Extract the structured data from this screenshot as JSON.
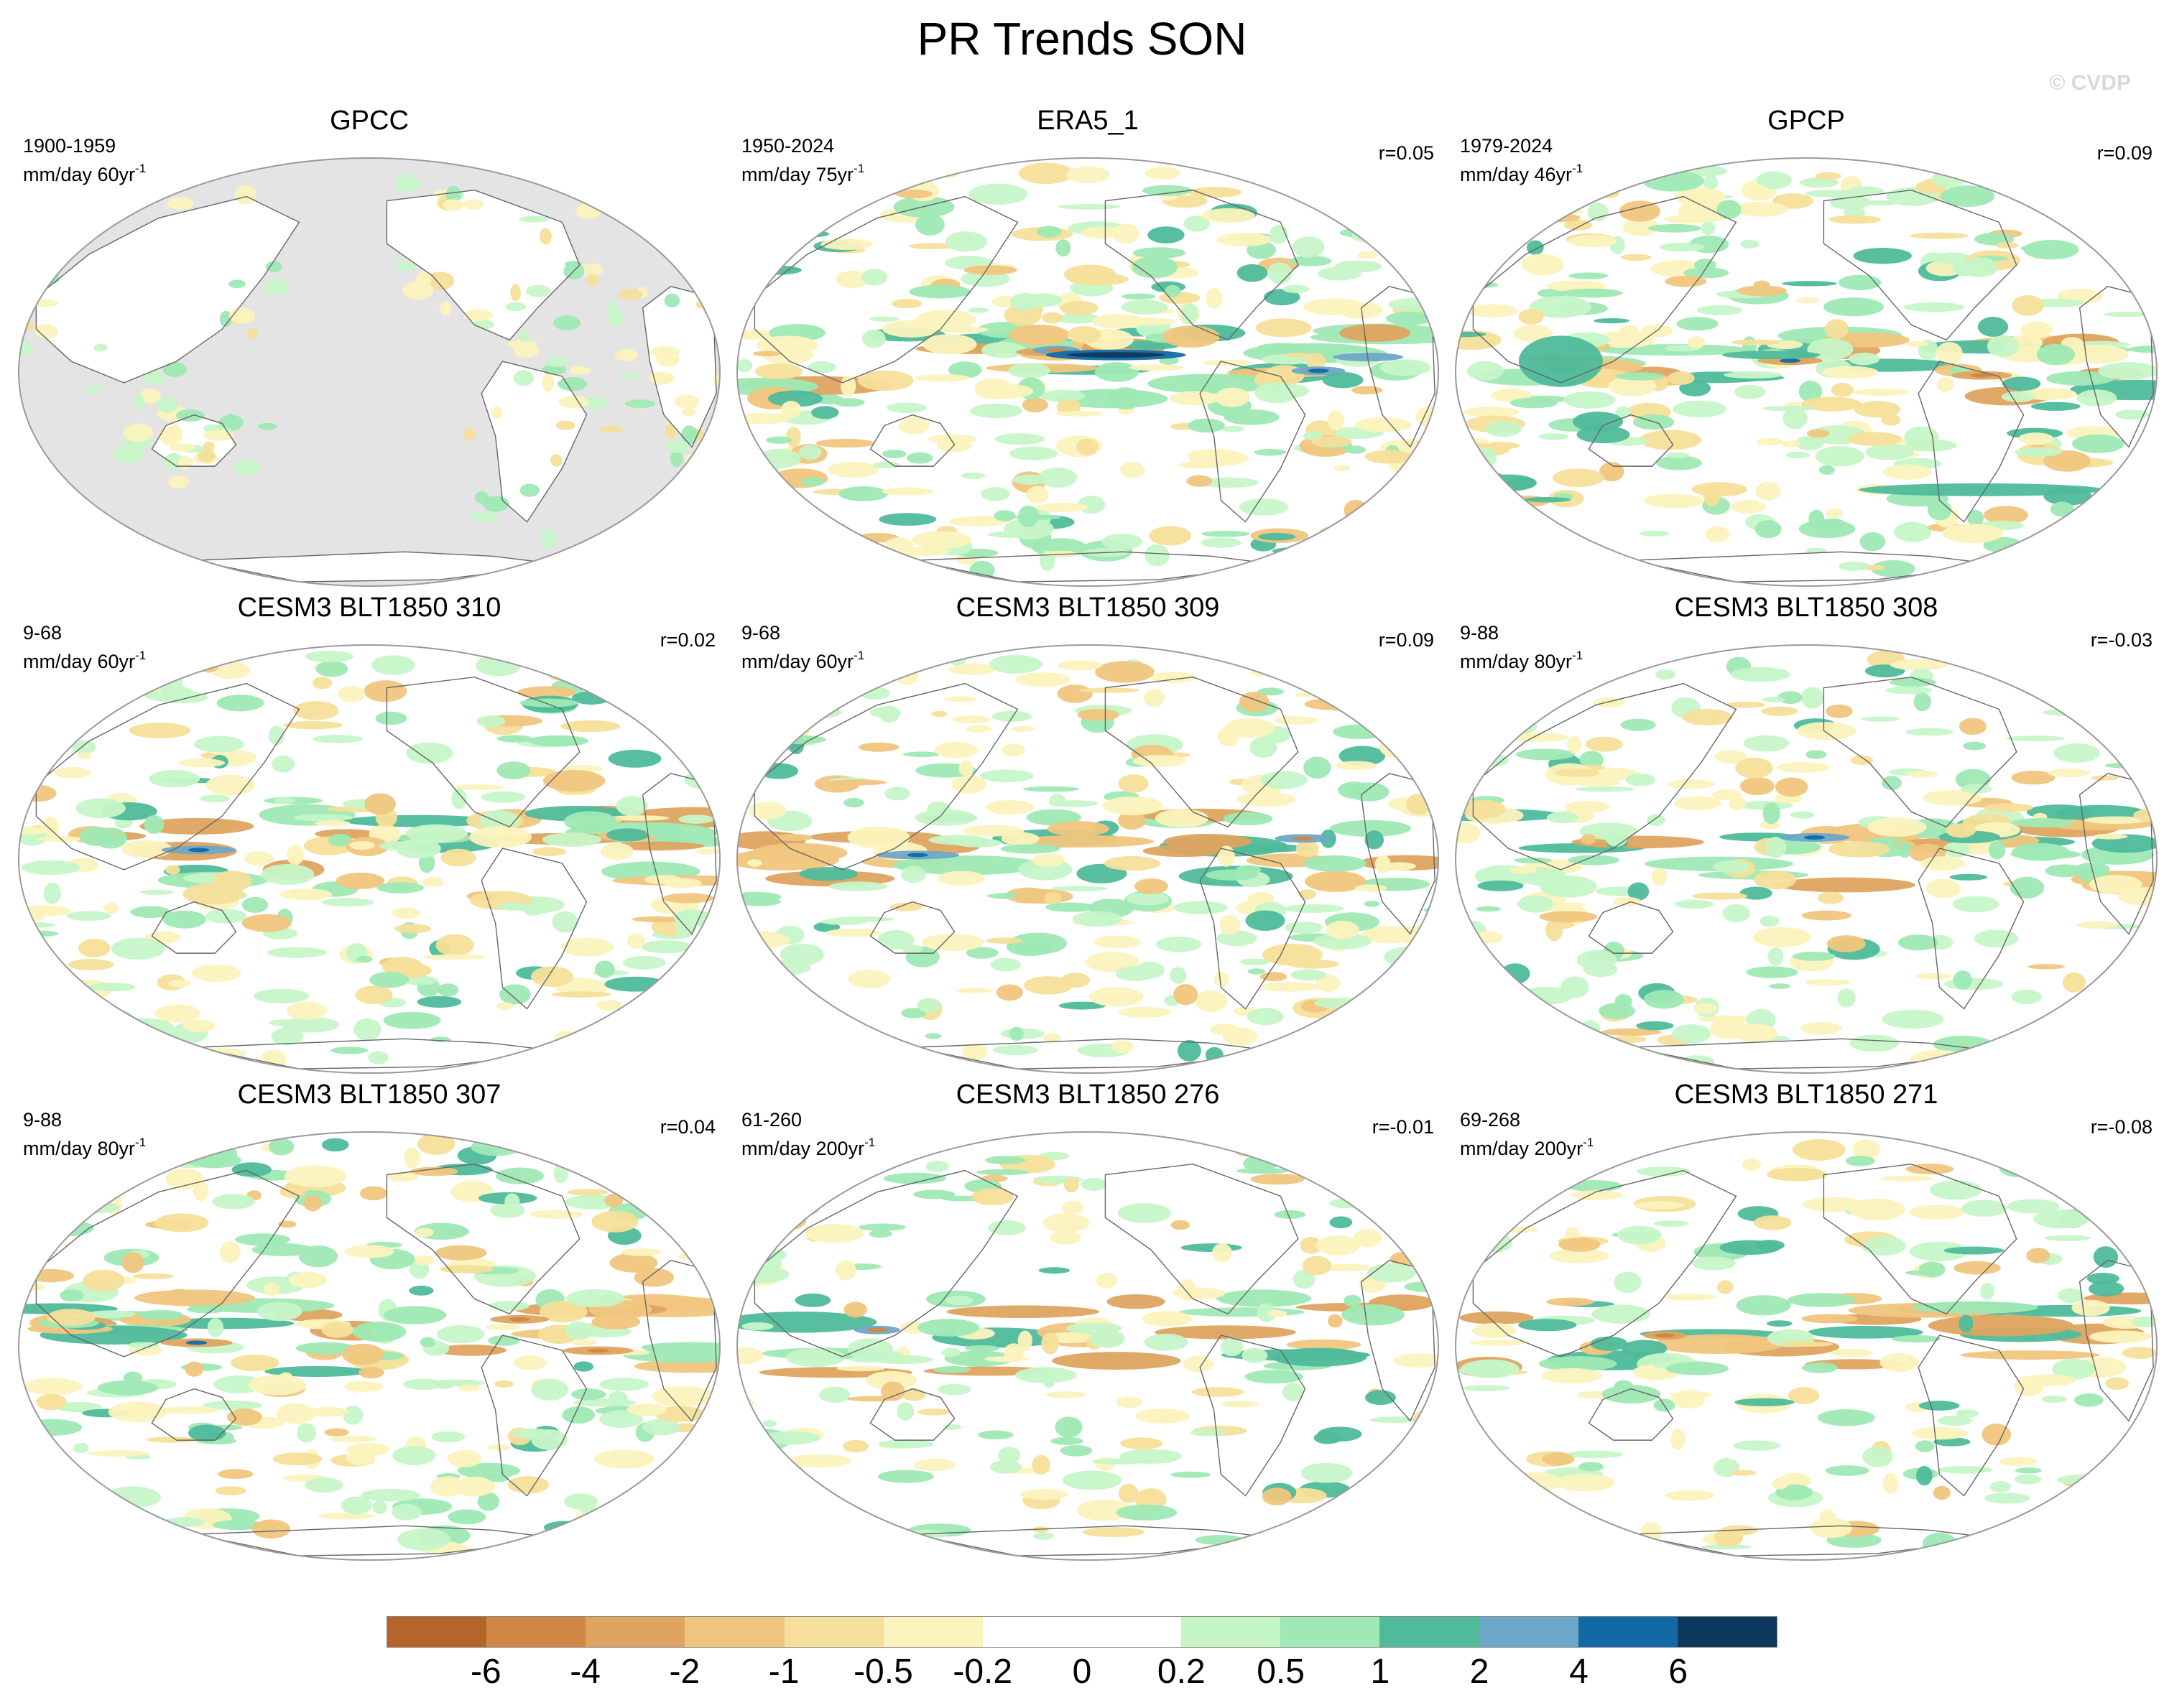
{
  "figure": {
    "title": "PR Trends SON",
    "watermark": "© CVDP"
  },
  "panels": [
    {
      "title": "GPCC",
      "period": "1900-1959",
      "units": "mm/day 60yr",
      "exponent": "-1",
      "corr": "",
      "variant": "obs_land"
    },
    {
      "title": "ERA5_1",
      "period": "1950-2024",
      "units": "mm/day 75yr",
      "exponent": "-1",
      "corr": "r=0.05",
      "variant": "reanalysis"
    },
    {
      "title": "GPCP",
      "period": "1979-2024",
      "units": "mm/day 46yr",
      "exponent": "-1",
      "corr": "r=0.09",
      "variant": "satellite"
    },
    {
      "title": "CESM3 BLT1850 310",
      "period": "9-68",
      "units": "mm/day 60yr",
      "exponent": "-1",
      "corr": "r=0.02",
      "variant": "model"
    },
    {
      "title": "CESM3 BLT1850 309",
      "period": "9-68",
      "units": "mm/day 60yr",
      "exponent": "-1",
      "corr": "r=0.09",
      "variant": "model"
    },
    {
      "title": "CESM3 BLT1850 308",
      "period": "9-88",
      "units": "mm/day 80yr",
      "exponent": "-1",
      "corr": "r=-0.03",
      "variant": "model"
    },
    {
      "title": "CESM3 BLT1850 307",
      "period": "9-88",
      "units": "mm/day 80yr",
      "exponent": "-1",
      "corr": "r=0.04",
      "variant": "model"
    },
    {
      "title": "CESM3 BLT1850 276",
      "period": "61-260",
      "units": "mm/day 200yr",
      "exponent": "-1",
      "corr": "r=-0.01",
      "variant": "model_weak"
    },
    {
      "title": "CESM3 BLT1850 271",
      "period": "69-268",
      "units": "mm/day 200yr",
      "exponent": "-1",
      "corr": "r=-0.08",
      "variant": "model_weak"
    }
  ],
  "colorbar": {
    "colors": [
      "#b5652a",
      "#cf8743",
      "#dfa460",
      "#f0c67e",
      "#f5df9a",
      "#fbf3bd",
      "#ffffff",
      "#ffffff",
      "#c6f5c8",
      "#9ee9b4",
      "#4fbb9b",
      "#6ea7c8",
      "#116aa6",
      "#0d3a5c"
    ],
    "labels": [
      "-6",
      "-4",
      "-2",
      "-1",
      "-0.5",
      "-0.2",
      "0",
      "0.2",
      "0.5",
      "1",
      "2",
      "4",
      "6"
    ]
  },
  "palette": {
    "land_mask": "#e4e4e4",
    "coastline": "#666666",
    "border": "#9a9a9a"
  }
}
